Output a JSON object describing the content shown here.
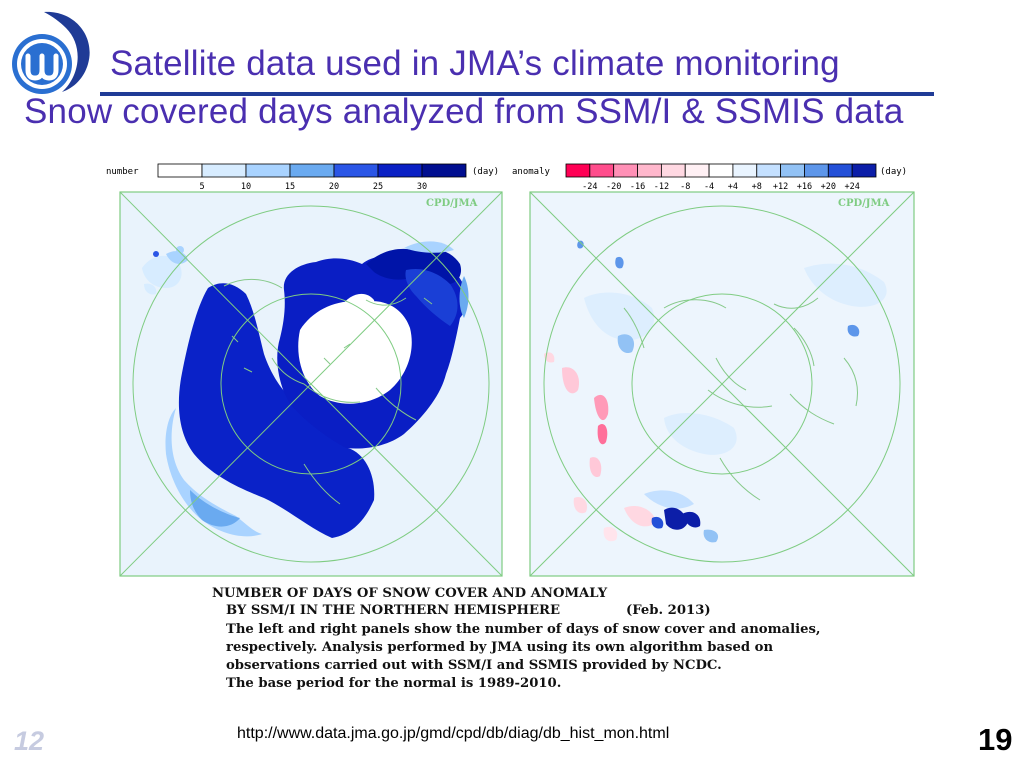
{
  "slide": {
    "title_line1": "Satellite data used in JMA’s climate monitoring",
    "title_line2": "Snow covered days analyzed from SSM/I & SSMIS data",
    "url": "http://www.data.jma.go.jp/gmd/cpd/db/diag/db_hist_mon.html",
    "number_left": "12",
    "number_right": "19"
  },
  "figure": {
    "left_legend": {
      "label": "number",
      "unit": "(day)",
      "ticks": [
        "5",
        "10",
        "15",
        "20",
        "25",
        "30"
      ],
      "colors": [
        "#ffffff",
        "#d7ecff",
        "#a9d3ff",
        "#6aaaf0",
        "#2b56e6",
        "#0a20c4",
        "#000e90"
      ]
    },
    "right_legend": {
      "label": "anomaly",
      "unit": "(day)",
      "ticks": [
        "-24",
        "-20",
        "-16",
        "-12",
        "-8",
        "-4",
        "+4",
        "+8",
        "+12",
        "+16",
        "+20",
        "+24"
      ],
      "colors": [
        "#ff0055",
        "#ff4d8c",
        "#ff90b6",
        "#ffb7cc",
        "#ffd8e2",
        "#fff0f4",
        "#ffffff",
        "#e9f4ff",
        "#c4e0ff",
        "#92c2f5",
        "#5d96ea",
        "#2450d8",
        "#0c1ea8"
      ]
    },
    "watermark_left": "CPD/JMA",
    "watermark_right": "CPD/JMA",
    "caption": {
      "line1": "NUMBER OF DAYS OF SNOW COVER AND ANOMALY",
      "line2": "BY SSM/I IN THE NORTHERN HEMISPHERE",
      "line2_date": "(Feb. 2013)",
      "line3": "The left and right panels show the number of days of snow cover and anomalies,",
      "line4": "respectively. Analysis performed by JMA using its own algorithm based on",
      "line5": "observations carried out with SSM/I and SSMIS provided by NCDC.",
      "line6": "The base period for the normal is 1989-2010."
    }
  }
}
